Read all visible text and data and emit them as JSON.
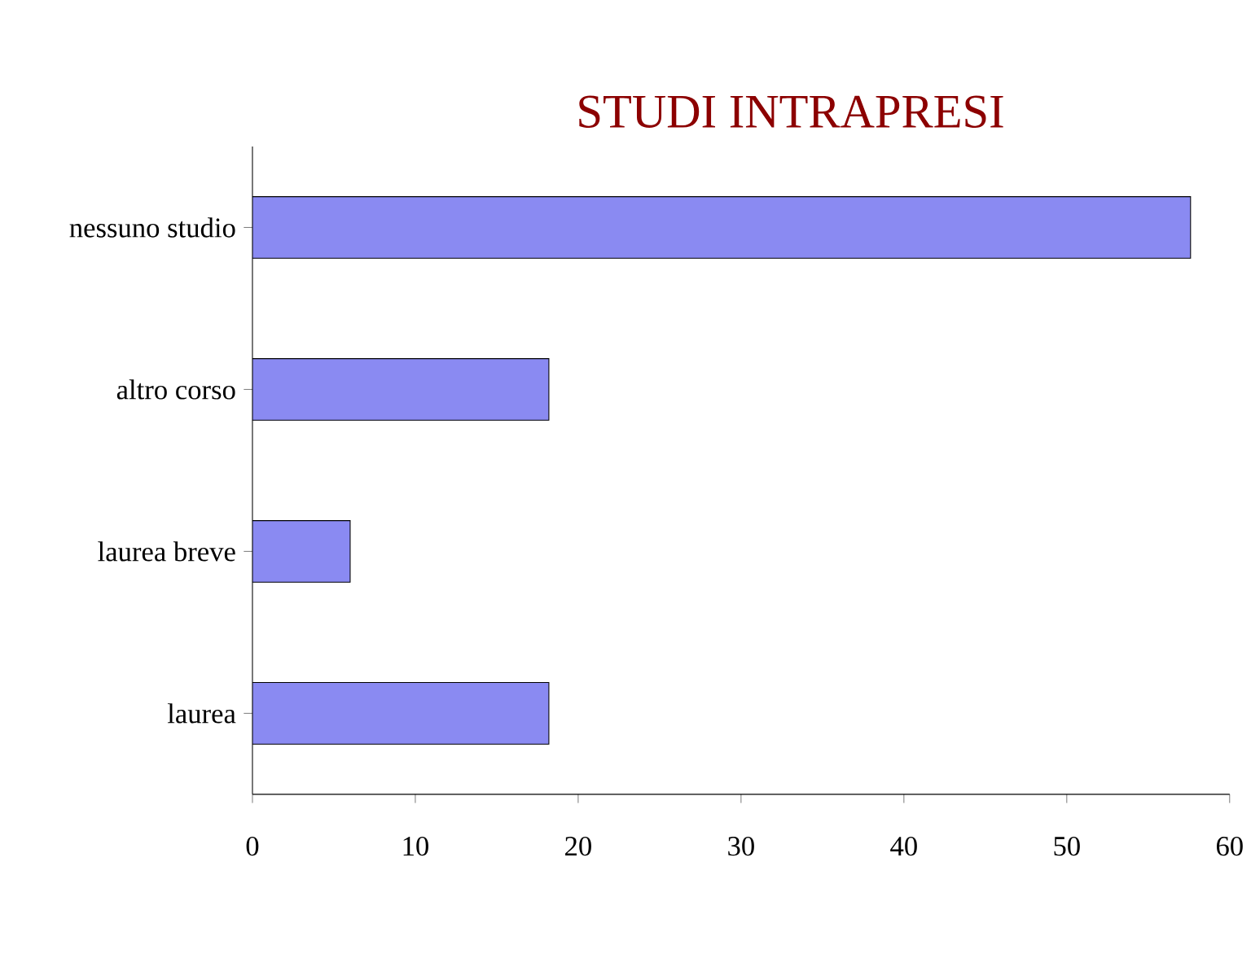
{
  "chart_data": {
    "type": "bar",
    "orientation": "horizontal",
    "title": "STUDI INTRAPRESI",
    "categories": [
      "nessuno studio",
      "altro corso",
      "laurea breve",
      "laurea"
    ],
    "values": [
      57.6,
      18.2,
      6.0,
      18.2
    ],
    "color": "#8a8af2",
    "xlim": [
      0,
      60
    ],
    "xticks": [
      0,
      10,
      20,
      30,
      40,
      50,
      60
    ]
  }
}
